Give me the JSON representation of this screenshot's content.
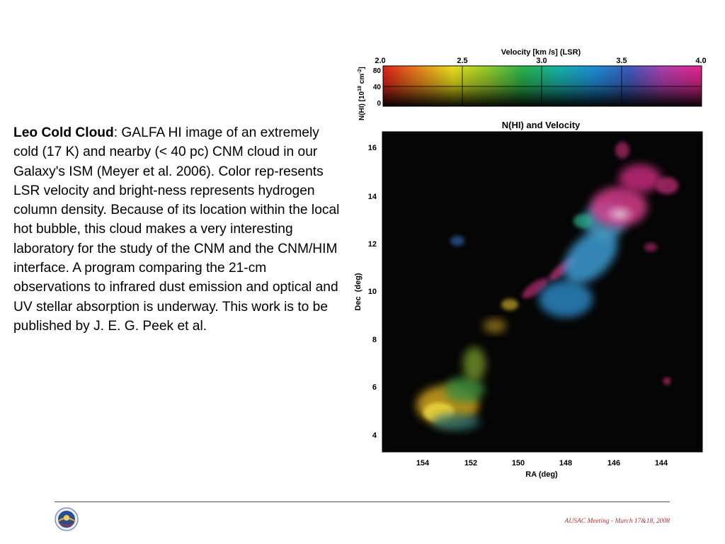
{
  "description": {
    "title": "Leo Cold Cloud",
    "body": ":  GALFA HI image of an extremely cold (17 K) and nearby (< 40 pc) CNM cloud in our Galaxy's ISM (Meyer et al. 2006).  Color rep-resents LSR velocity and bright-ness represents hydrogen column density.  Because of its location within the local hot bubble, this cloud makes a very interesting laboratory for the study of the CNM and the CNM/HIM interface. A program comparing the 21-cm observations to infrared dust emission and optical and UV stellar absorption is underway.  This work is to be published by J. E. G. Peek et al."
  },
  "figure": {
    "colorbar": {
      "title": "Velocity [km /s] (LSR)",
      "ylabel": "N(HI) [10",
      "ylabel_exp": "18",
      "ylabel_unit": " cm",
      "ylabel_unit_exp": "-2",
      "ylabel_close": "]",
      "x_ticks": [
        "2.0",
        "2.5",
        "3.0",
        "3.5",
        "4.0"
      ],
      "y_ticks": [
        "80",
        "40",
        "0"
      ],
      "gradient_colors": [
        "#e0201c",
        "#e8841c",
        "#ece21c",
        "#94cc2c",
        "#28b44c",
        "#18b4a8",
        "#1c90d8",
        "#3c5cc0",
        "#b040b0",
        "#e8248c"
      ]
    },
    "map": {
      "title": "N(HI) and Velocity",
      "xlabel": "RA (deg)",
      "ylabel": "Dec  (deg)",
      "x_ticks": [
        "154",
        "152",
        "150",
        "148",
        "146",
        "144"
      ],
      "y_ticks": [
        "16",
        "14",
        "12",
        "10",
        "8",
        "6",
        "4"
      ]
    }
  },
  "footer": {
    "text": "AUSAC Meeting - March 17&18, 2008",
    "logo_icon": "observatory-seal-icon"
  }
}
